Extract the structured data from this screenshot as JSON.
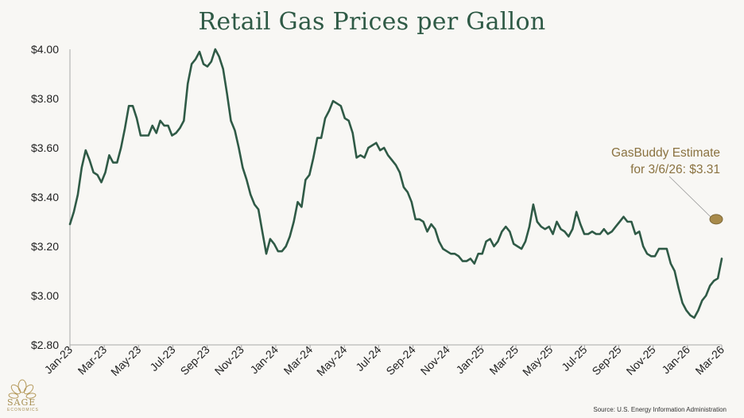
{
  "chart_data": {
    "type": "line",
    "title": "Retail Gas Prices per Gallon",
    "xlabel": "",
    "ylabel": "",
    "ylim": [
      2.8,
      4.0
    ],
    "yticks": [
      "$4.00",
      "$3.80",
      "$3.60",
      "$3.40",
      "$3.20",
      "$3.00",
      "$2.80"
    ],
    "ytick_values": [
      4.0,
      3.8,
      3.6,
      3.4,
      3.2,
      3.0,
      2.8
    ],
    "xtick_labels": [
      "Jan-23",
      "Mar-23",
      "May-23",
      "Jul-23",
      "Sep-23",
      "Nov-23",
      "Jan-24",
      "Mar-24",
      "May-24",
      "Jul-24",
      "Sep-24",
      "Nov-24",
      "Jan-25",
      "Mar-25",
      "May-25",
      "Jul-25",
      "Sep-25",
      "Nov-25",
      "Jan-26",
      "Mar-26"
    ],
    "grid": false,
    "series": [
      {
        "name": "Retail Gas Price",
        "color": "#2f5a46",
        "values": [
          3.29,
          3.34,
          3.41,
          3.52,
          3.59,
          3.55,
          3.5,
          3.49,
          3.46,
          3.5,
          3.57,
          3.54,
          3.54,
          3.6,
          3.68,
          3.77,
          3.77,
          3.72,
          3.65,
          3.65,
          3.65,
          3.69,
          3.66,
          3.71,
          3.69,
          3.69,
          3.65,
          3.66,
          3.68,
          3.71,
          3.86,
          3.94,
          3.96,
          3.99,
          3.94,
          3.93,
          3.95,
          4.0,
          3.97,
          3.92,
          3.82,
          3.71,
          3.67,
          3.6,
          3.52,
          3.47,
          3.41,
          3.37,
          3.35,
          3.26,
          3.17,
          3.23,
          3.21,
          3.18,
          3.18,
          3.2,
          3.24,
          3.3,
          3.38,
          3.36,
          3.47,
          3.49,
          3.56,
          3.64,
          3.64,
          3.72,
          3.75,
          3.79,
          3.78,
          3.77,
          3.72,
          3.71,
          3.66,
          3.56,
          3.57,
          3.56,
          3.6,
          3.61,
          3.62,
          3.59,
          3.6,
          3.57,
          3.55,
          3.53,
          3.5,
          3.44,
          3.42,
          3.38,
          3.31,
          3.31,
          3.3,
          3.26,
          3.29,
          3.27,
          3.22,
          3.19,
          3.18,
          3.17,
          3.17,
          3.16,
          3.14,
          3.14,
          3.15,
          3.13,
          3.17,
          3.17,
          3.22,
          3.23,
          3.2,
          3.22,
          3.26,
          3.28,
          3.26,
          3.21,
          3.2,
          3.19,
          3.22,
          3.28,
          3.37,
          3.3,
          3.28,
          3.27,
          3.28,
          3.25,
          3.3,
          3.27,
          3.26,
          3.24,
          3.27,
          3.34,
          3.29,
          3.25,
          3.25,
          3.26,
          3.25,
          3.25,
          3.27,
          3.25,
          3.26,
          3.28,
          3.3,
          3.32,
          3.3,
          3.3,
          3.25,
          3.26,
          3.2,
          3.17,
          3.16,
          3.16,
          3.19,
          3.19,
          3.19,
          3.13,
          3.1,
          3.03,
          2.97,
          2.94,
          2.92,
          2.91,
          2.94,
          2.98,
          3.0,
          3.04,
          3.06,
          3.07,
          3.15
        ]
      }
    ],
    "annotation": {
      "line1": "GasBuddy Estimate",
      "line2": "for 3/6/26: $3.31",
      "value": 3.31,
      "color": "#a88a4a"
    }
  },
  "source": "Source: U.S. Energy Information Administration",
  "logo": {
    "name": "SAGE",
    "subtitle": "ECONOMICS",
    "icon": "sage-leaf-icon"
  }
}
